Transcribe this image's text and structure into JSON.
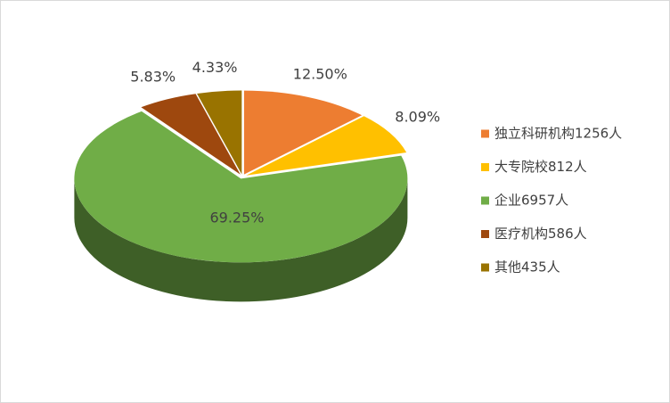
{
  "chart_data": {
    "type": "pie",
    "categories": [
      "独立科研机构1256人",
      "大专院校812人",
      "企业6957人",
      "医疗机构586人",
      "其他435人"
    ],
    "values": [
      12.5,
      8.09,
      69.25,
      5.83,
      4.33
    ],
    "value_labels": [
      "12.50%",
      "8.09%",
      "69.25%",
      "5.83%",
      "4.33%"
    ],
    "colors": [
      "#ED7D31",
      "#FFC000",
      "#70AD47",
      "#9E480E",
      "#997300"
    ],
    "legend": "right"
  }
}
